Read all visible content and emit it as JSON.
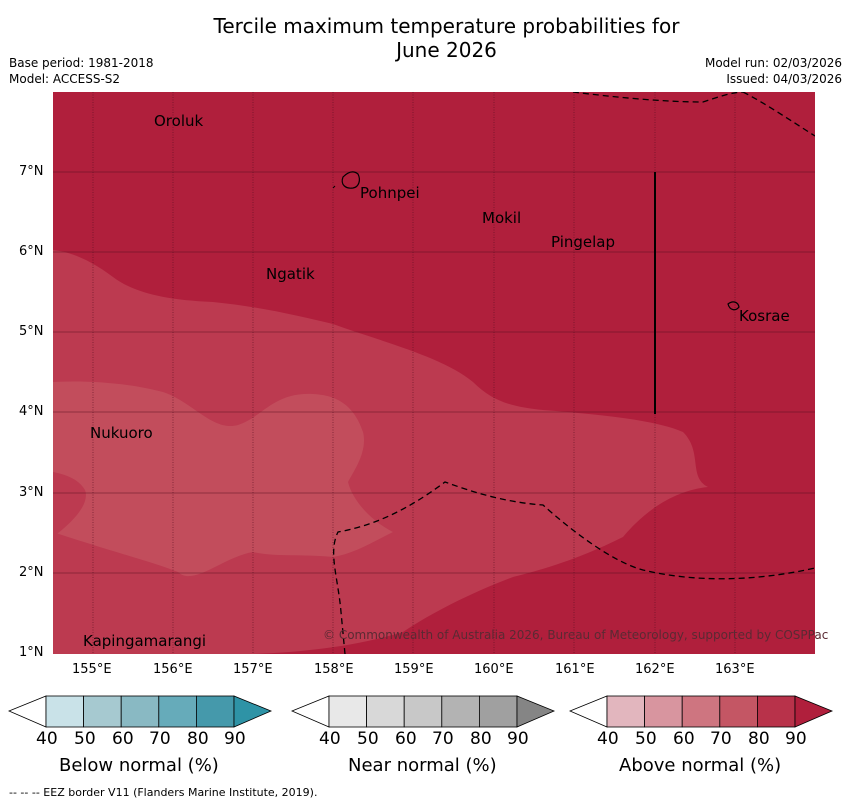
{
  "title_line1": "Tercile maximum temperature probabilities for",
  "title_line2": "June 2026",
  "base_period": "Base period: 1981-2018",
  "model": "Model: ACCESS-S2",
  "model_run": "Model run: 02/03/2026",
  "issued": "Issued: 04/03/2026",
  "lat_labels": [
    "7°N",
    "6°N",
    "5°N",
    "4°N",
    "3°N",
    "2°N",
    "1°N"
  ],
  "lon_labels": [
    "155°E",
    "156°E",
    "157°E",
    "158°E",
    "159°E",
    "160°E",
    "161°E",
    "162°E",
    "163°E"
  ],
  "places": [
    "Oroluk",
    "Pohnpei",
    "Mokil",
    "Pingelap",
    "Ngatik",
    "Kosrae",
    "Nukuoro",
    "Kapingamarangi"
  ],
  "copyright": "© Commonwealth of Australia 2026, Bureau of Meteorology, supported by COSPPac",
  "colorbar_ticks": [
    "40",
    "50",
    "60",
    "70",
    "80",
    "90"
  ],
  "colorbars": [
    {
      "title": "Below normal (%)",
      "colors": [
        "#ffffff",
        "#c9e2e8",
        "#a6c9d0",
        "#89b9c3",
        "#66abba",
        "#4599ab",
        "#2e93a6"
      ]
    },
    {
      "title": "Near normal (%)",
      "colors": [
        "#ffffff",
        "#e8e8e8",
        "#d8d8d8",
        "#c8c8c8",
        "#b3b3b3",
        "#a0a0a0",
        "#858585"
      ]
    },
    {
      "title": "Above normal (%)",
      "colors": [
        "#ffffff",
        "#e2b6be",
        "#d8959f",
        "#ce7580",
        "#c45664",
        "#b8324a",
        "#b01f3c"
      ]
    }
  ],
  "footer": "--  --  -- EEZ border V11 (Flanders Marine Institute, 2019).",
  "probability_colors": {
    "p80_90": "#b01f3c",
    "p70_80": "#bc3a50",
    "p60_70": "#c24d5c"
  }
}
